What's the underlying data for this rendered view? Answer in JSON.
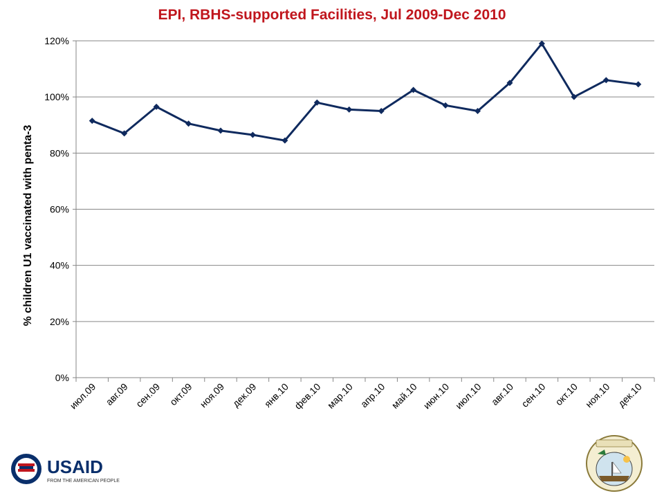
{
  "chart_data": {
    "type": "line",
    "title": "EPI, RBHS-supported Facilities, Jul 2009-Dec 2010",
    "xlabel": "",
    "ylabel": "% children U1 vaccinated with penta-3",
    "categories": [
      "июл.09",
      "авг.09",
      "сен.09",
      "окт.09",
      "ноя.09",
      "дек.09",
      "янв.10",
      "фев.10",
      "мар.10",
      "апр.10",
      "май.10",
      "июн.10",
      "июл.10",
      "авг.10",
      "сен.10",
      "окт.10",
      "ноя.10",
      "дек.10"
    ],
    "values": [
      91.5,
      87,
      96.5,
      90.5,
      88,
      86.5,
      84.5,
      98,
      95.5,
      95,
      102.5,
      97,
      95,
      105,
      119,
      100,
      106,
      104.5
    ],
    "y_ticks": [
      "0%",
      "20%",
      "40%",
      "60%",
      "80%",
      "100%",
      "120%"
    ],
    "ylim": [
      0,
      120
    ],
    "grid": true,
    "legend": "none",
    "line_color": "#0f2a5e",
    "title_color": "#c0161d"
  },
  "logos": {
    "usaid_text": "USAID",
    "usaid_tagline": "FROM THE AMERICAN PEOPLE",
    "seal": "liberia-seal"
  }
}
